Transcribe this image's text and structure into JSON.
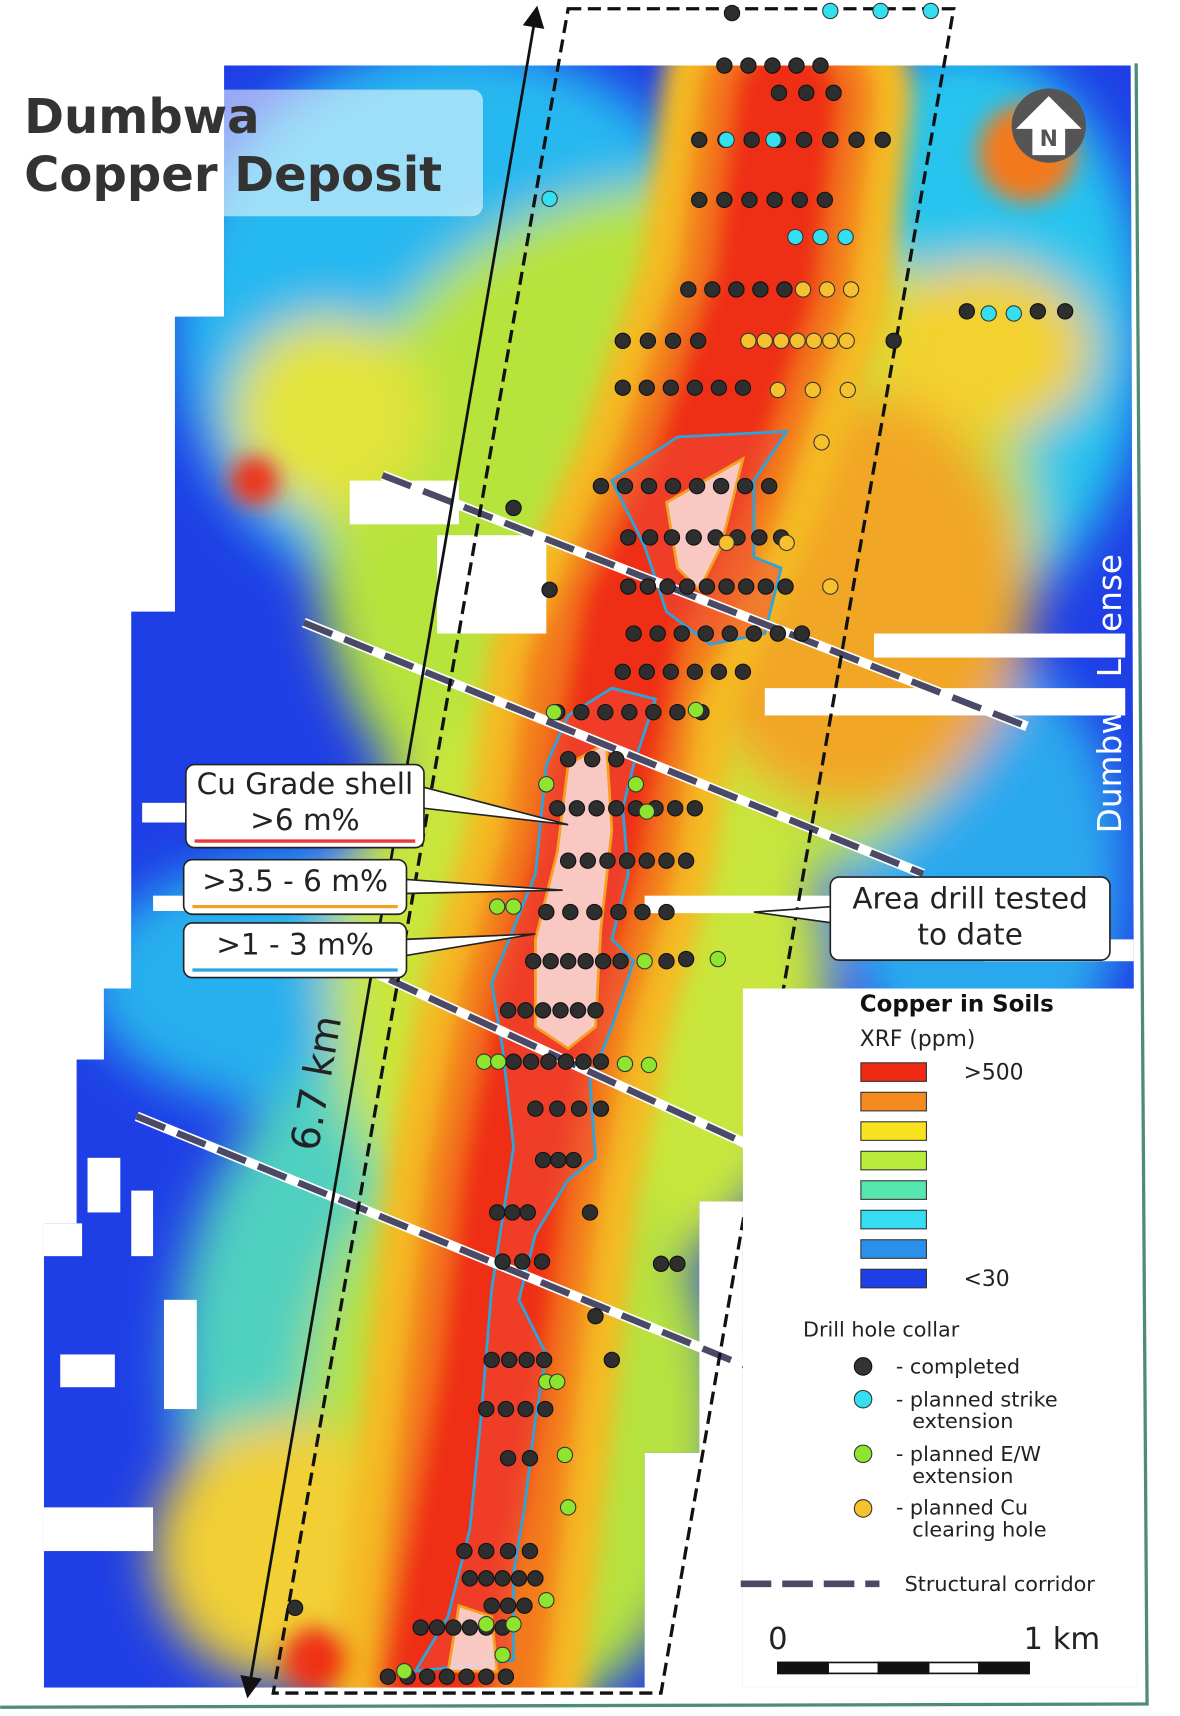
{
  "title": {
    "line1": "Dumbwa",
    "line2": "Copper Deposit"
  },
  "north_label": "N",
  "license_label": "Dumbwa License",
  "length_label": "6.7 km",
  "callouts": {
    "grade_shell_title": "Cu Grade shell",
    "high": ">6 m%",
    "mid": ">3.5 - 6 m%",
    "low": ">1 - 3 m%",
    "area_line1": "Area drill tested",
    "area_line2": "to date"
  },
  "legend": {
    "title": "Copper in Soils",
    "subtitle": "XRF (ppm)",
    "max_label": ">500",
    "min_label": "<30",
    "collar_title": "Drill hole collar",
    "completed": "- completed",
    "strike_1": "- planned strike",
    "strike_2": "extension",
    "ew_1": "- planned E/W",
    "ew_2": "extension",
    "clearing_1": "- planned Cu",
    "clearing_2": "clearing hole",
    "corridor": "Structural corridor"
  },
  "scale_bar": {
    "start": "0",
    "end": "1 km"
  }
}
